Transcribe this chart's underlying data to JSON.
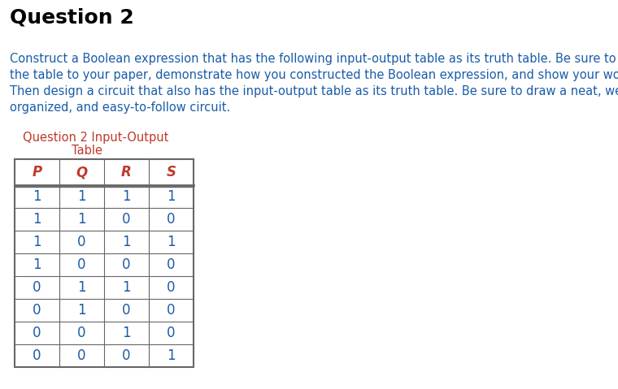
{
  "title": "Question 2",
  "body_lines": [
    "Construct a Boolean expression that has the following input-output table as its truth table. Be sure to copy",
    "the table to your paper, demonstrate how you constructed the Boolean expression, and show your work.",
    "Then design a circuit that also has the input-output table as its truth table. Be sure to draw a neat, well-",
    "organized, and easy-to-follow circuit."
  ],
  "table_title_line1": "Question 2 Input-Output",
  "table_title_line2": "Table",
  "col_headers": [
    "P",
    "Q",
    "R",
    "S"
  ],
  "table_data": [
    [
      1,
      1,
      1,
      1
    ],
    [
      1,
      1,
      0,
      0
    ],
    [
      1,
      0,
      1,
      1
    ],
    [
      1,
      0,
      0,
      0
    ],
    [
      0,
      1,
      1,
      0
    ],
    [
      0,
      1,
      0,
      0
    ],
    [
      0,
      0,
      1,
      0
    ],
    [
      0,
      0,
      0,
      1
    ]
  ],
  "title_color": "#000000",
  "body_text_color": "#1a5ca8",
  "table_title_color": "#c0392b",
  "header_text_color": "#c0392b",
  "data_text_color": "#1a5ca8",
  "table_line_color": "#666666",
  "background_color": "#ffffff",
  "title_fontsize": 18,
  "body_fontsize": 10.5,
  "table_title_fontsize": 10.5,
  "header_fontsize": 12,
  "data_fontsize": 12
}
